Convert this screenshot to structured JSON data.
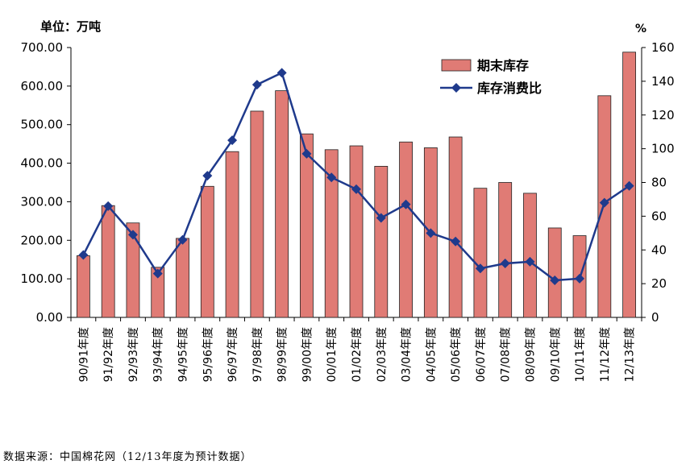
{
  "unit_label": "单位：万吨",
  "right_unit_label": "%",
  "source_note": "数据来源：中国棉花网（12/13年度为预计数据）",
  "colors": {
    "bar_fill": "#e07b75",
    "bar_stroke": "#222222",
    "line": "#1f3a8c",
    "marker": "#1f3a8c"
  },
  "chart_data": {
    "type": "bar",
    "categories": [
      "90/91年度",
      "91/92年度",
      "92/93年度",
      "93/94年度",
      "94/95年度",
      "95/96年度",
      "96/97年度",
      "97/98年度",
      "98/99年度",
      "99/00年度",
      "00/01年度",
      "01/02年度",
      "02/03年度",
      "03/04年度",
      "04/05年度",
      "05/06年度",
      "06/07年度",
      "07/08年度",
      "08/09年度",
      "09/10年度",
      "10/11年度",
      "11/12年度",
      "12/13年度"
    ],
    "series": [
      {
        "name": "期末库存",
        "type": "bar",
        "axis": "left",
        "values": [
          160,
          290,
          245,
          130,
          205,
          340,
          430,
          535,
          588,
          476,
          435,
          445,
          392,
          455,
          440,
          468,
          335,
          350,
          322,
          232,
          212,
          575,
          688
        ]
      },
      {
        "name": "库存消费比",
        "type": "line",
        "axis": "right",
        "values": [
          37,
          66,
          49,
          26,
          46,
          84,
          105,
          138,
          145,
          97,
          83,
          76,
          59,
          67,
          50,
          45,
          29,
          32,
          33,
          22,
          23,
          68,
          78
        ]
      }
    ],
    "y_left": {
      "ylim": [
        0,
        700
      ],
      "ticks": [
        "0.00",
        "100.00",
        "200.00",
        "300.00",
        "400.00",
        "500.00",
        "600.00",
        "700.00"
      ]
    },
    "y_right": {
      "ylim": [
        0,
        160
      ],
      "ticks": [
        "0",
        "20",
        "40",
        "60",
        "80",
        "100",
        "120",
        "140",
        "160"
      ]
    },
    "legend_position": "top-right",
    "grid": false
  }
}
